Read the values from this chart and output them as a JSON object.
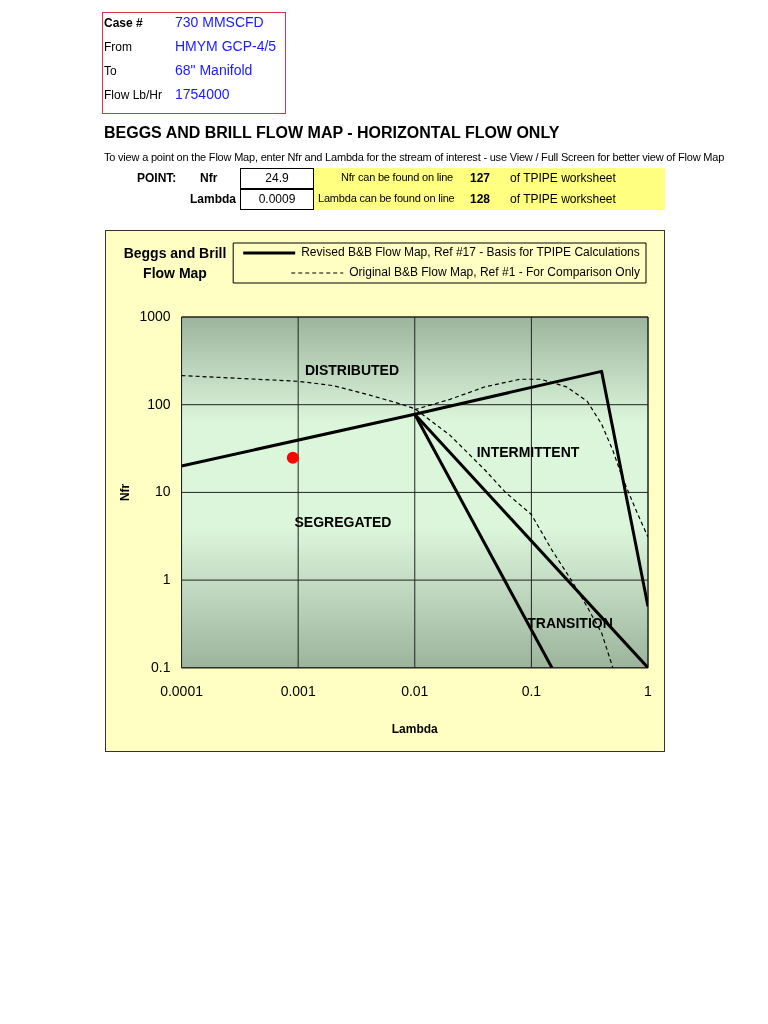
{
  "chart_data": {
    "type": "line",
    "title": "BEGGS AND BRILL FLOW MAP - HORIZONTAL FLOW ONLY",
    "subtitle": "To view a point on the Flow Map, enter Nfr and Lambda for the stream of interest - use View / Full Screen for better view of Flow Map",
    "xlabel": "Lambda",
    "ylabel": "Nfr",
    "annotations": [
      "Case #",
      "730 MMSCFD",
      "From",
      "HMYM GCP-4/5",
      "To",
      "68\" Manifold",
      "Flow Lb/Hr",
      "1754000",
      "POINT:",
      "Nfr",
      "24.9",
      "Nfr can be found on line",
      "127",
      "of TPIPE worksheet",
      "Lambda",
      "0.0009",
      "Lambda can be found on line",
      "128",
      "of TPIPE worksheet",
      "Beggs and Brill Flow Map",
      "DISTRIBUTED",
      "INTERMITTENT",
      "SEGREGATED",
      "TRANSITION"
    ],
    "xlim": [
      0.0001,
      1
    ],
    "ylim": [
      0.1,
      1000
    ],
    "xticks": [
      0.0001,
      0.001,
      0.01,
      0.1,
      1
    ],
    "yticks": [
      0.1,
      1,
      10,
      100,
      1000
    ],
    "log": "xy",
    "grid": true,
    "legend": "top right",
    "series": [
      {
        "name": "Revised B&B Flow Map, Ref #17 - Basis for TPIPE Calculations",
        "color": "#000000",
        "line_style": "solid",
        "x": [
          0.0001,
          0.01,
          0.4,
          1
        ],
        "values": [
          20,
          78,
          240,
          0.5
        ]
      },
      {
        "color": "#000000",
        "line_style": "solid",
        "x": [
          0.01,
          0.15
        ],
        "values": [
          78,
          0.1
        ]
      },
      {
        "color": "#000000",
        "line_style": "solid",
        "x": [
          0.01,
          1
        ],
        "values": [
          78,
          0.1
        ]
      },
      {
        "name": "Original B&B Flow Map, Ref #1 - For Comparison Only",
        "color": "#000000",
        "line_style": "dashed",
        "x": [
          0.0001,
          0.0003,
          0.001,
          0.002,
          0.004,
          0.007,
          0.01,
          0.02,
          0.04,
          0.06,
          0.1,
          0.15,
          0.22,
          0.3,
          0.4,
          0.5
        ],
        "values": [
          215,
          200,
          185,
          165,
          130,
          105,
          90,
          45,
          18,
          10,
          5.6,
          2.2,
          1,
          0.5,
          0.25,
          0.1
        ]
      },
      {
        "color": "#000000",
        "line_style": "dashed",
        "x": [
          0.01,
          0.02,
          0.04,
          0.08,
          0.12,
          0.2,
          0.3,
          0.4,
          0.5,
          0.6,
          0.8,
          1
        ],
        "values": [
          88,
          115,
          160,
          195,
          195,
          160,
          110,
          60,
          30,
          15,
          6,
          3.1
        ]
      },
      {
        "type": "scatter",
        "color": "#ff0000",
        "marker": "circle",
        "x": [
          0.0009
        ],
        "values": [
          24.9
        ]
      }
    ]
  }
}
